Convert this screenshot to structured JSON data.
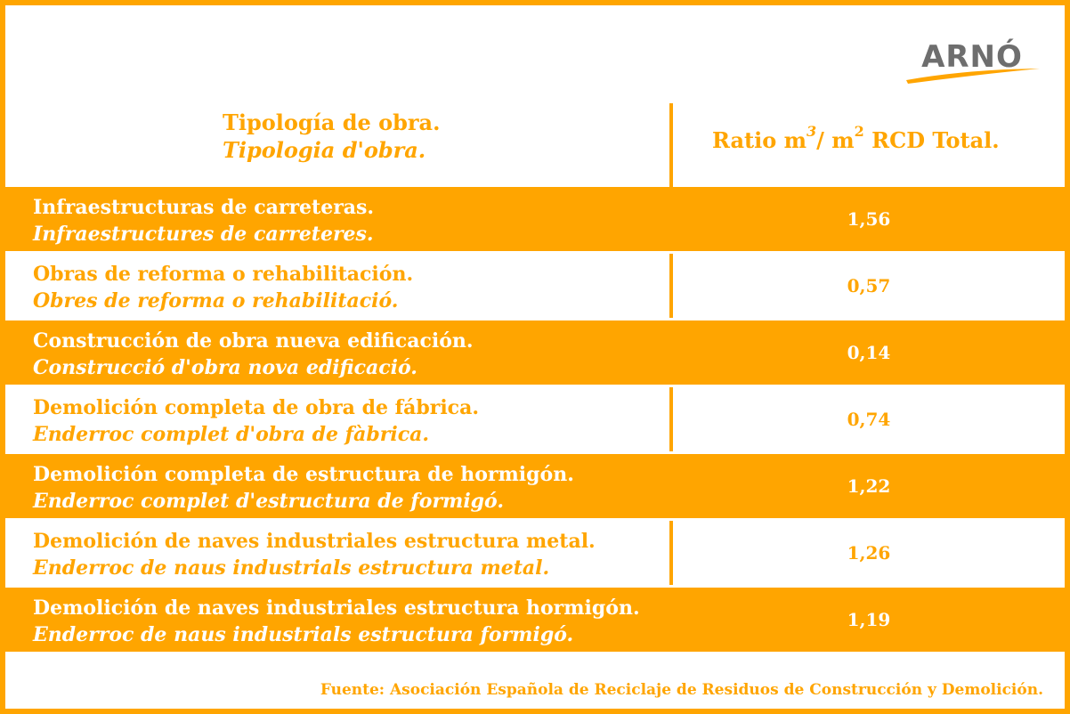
{
  "logo": {
    "text": "ARNÓ"
  },
  "header": {
    "type_es": "Tipología de obra.",
    "type_ca": "Tipologia d'obra.",
    "ratio_prefix": "Ratio m",
    "ratio_exp1": "3",
    "ratio_mid": "/ m",
    "ratio_exp2": "2",
    "ratio_suffix": " RCD Total."
  },
  "rows": [
    {
      "es": "Infraestructuras de carreteras.",
      "ca": "Infraestructures de carreteres.",
      "value": "1,56"
    },
    {
      "es": "Obras de reforma o rehabilitación.",
      "ca": "Obres de reforma o rehabilitació.",
      "value": "0,57"
    },
    {
      "es": "Construcción de obra nueva edificación.",
      "ca": "Construcció d'obra nova edificació.",
      "value": "0,14"
    },
    {
      "es": "Demolición completa de obra de fábrica.",
      "ca": "Enderroc complet d'obra de fàbrica.",
      "value": "0,74"
    },
    {
      "es": "Demolición completa de estructura de hormigón.",
      "ca": "Enderroc complet d'estructura de formigó.",
      "value": "1,22"
    },
    {
      "es": "Demolición de naves industriales estructura metal.",
      "ca": "Enderroc de naus industrials estructura metal.",
      "value": "1,26"
    },
    {
      "es": "Demolición de naves industriales estructura hormigón.",
      "ca": "Enderroc de naus industrials estructura formigó.",
      "value": "1,19"
    }
  ],
  "footer": {
    "source": "Fuente: Asociación Española de Reciclaje de Residuos de Construcción y Demolición."
  },
  "colors": {
    "accent": "#ffa500",
    "logo_gray": "#6e6e6e",
    "background": "#ffffff"
  }
}
